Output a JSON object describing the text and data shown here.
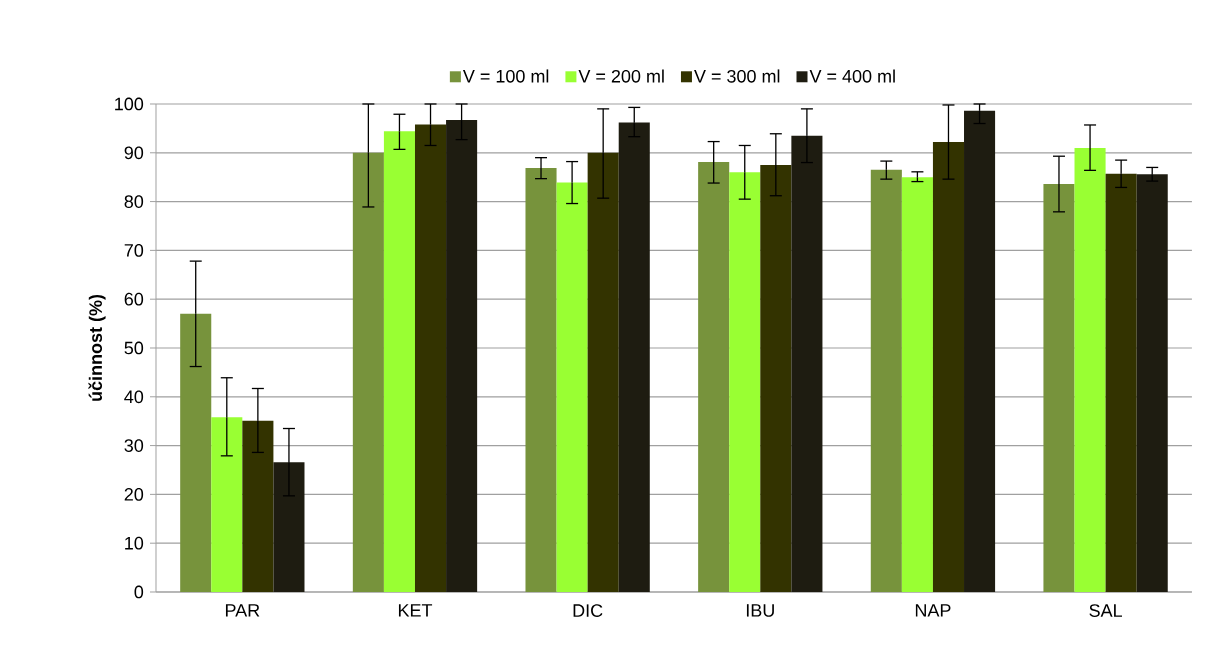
{
  "chart_data": {
    "type": "bar",
    "ylabel": "účinnost (%)",
    "categories": [
      "PAR",
      "KET",
      "DIC",
      "IBU",
      "NAP",
      "SAL"
    ],
    "series": [
      {
        "name": "V = 100 ml",
        "color": "#77933c",
        "values": [
          57.0,
          90.0,
          86.9,
          88.1,
          86.5,
          83.6
        ],
        "errors": [
          [
            46.2,
            67.8
          ],
          [
            78.9,
            100
          ],
          [
            84.7,
            89.0
          ],
          [
            83.8,
            92.3
          ],
          [
            84.6,
            88.3
          ],
          [
            77.9,
            89.3
          ]
        ]
      },
      {
        "name": "V = 200 ml",
        "color": "#99ff33",
        "values": [
          35.8,
          94.4,
          83.9,
          86.0,
          85.0,
          91.0
        ],
        "errors": [
          [
            27.9,
            43.9
          ],
          [
            90.7,
            97.9
          ],
          [
            79.6,
            88.2
          ],
          [
            80.5,
            91.5
          ],
          [
            84.1,
            86.1
          ],
          [
            86.4,
            95.7
          ]
        ]
      },
      {
        "name": "V = 300 ml",
        "color": "#333300",
        "values": [
          35.1,
          95.8,
          90.0,
          87.5,
          92.2,
          85.7
        ],
        "errors": [
          [
            28.6,
            41.7
          ],
          [
            91.5,
            100
          ],
          [
            80.7,
            99.0
          ],
          [
            81.2,
            93.9
          ],
          [
            84.6,
            99.8
          ],
          [
            82.9,
            88.5
          ]
        ]
      },
      {
        "name": "V = 400 ml",
        "color": "#1e1c11",
        "values": [
          26.6,
          96.7,
          96.2,
          93.5,
          98.6,
          85.6
        ],
        "errors": [
          [
            19.7,
            33.5
          ],
          [
            92.7,
            100
          ],
          [
            93.3,
            99.3
          ],
          [
            88.0,
            99.0
          ],
          [
            96.0,
            100
          ],
          [
            84.2,
            87.0
          ]
        ]
      }
    ],
    "ylim": [
      0,
      100
    ],
    "yticks": [
      0,
      10,
      20,
      30,
      40,
      50,
      60,
      70,
      80,
      90,
      100
    ],
    "grid": "y",
    "legend": "top",
    "marker": "square"
  }
}
